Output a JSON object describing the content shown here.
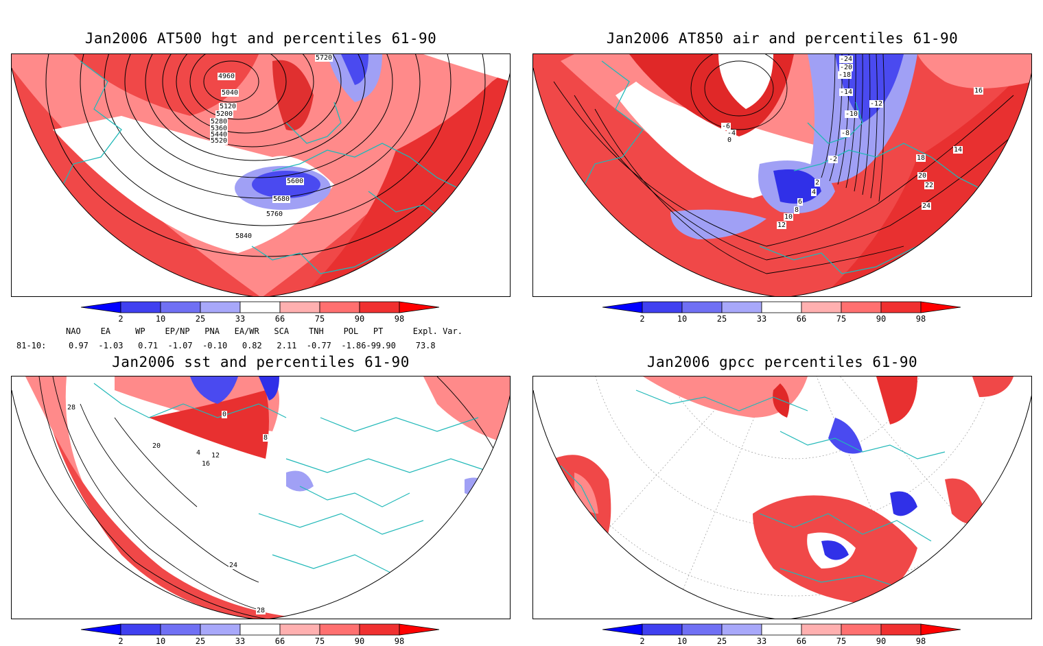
{
  "panels": [
    {
      "id": "hgt500",
      "title": "Jan2006 AT500 hgt and percentiles 61-90",
      "contour_labels": [
        "4960",
        "5040",
        "5120",
        "5200",
        "5280",
        "5360",
        "5440",
        "5520",
        "5600",
        "5680",
        "5760",
        "5840",
        "5720"
      ]
    },
    {
      "id": "air850",
      "title": "Jan2006 AT850 air and percentiles 61-90",
      "contour_labels": [
        "-24",
        "-20",
        "-18",
        "-14",
        "-12",
        "-10",
        "-8",
        "-6",
        "-4",
        "-2",
        "0",
        "2",
        "4",
        "6",
        "8",
        "10",
        "12",
        "14",
        "16",
        "18",
        "20",
        "22",
        "24"
      ]
    },
    {
      "id": "sst",
      "title": "Jan2006 sst and percentiles 61-90",
      "contour_labels": [
        "28",
        "20",
        "16",
        "12",
        "8",
        "4",
        "0",
        "24",
        "28"
      ]
    },
    {
      "id": "gpcc",
      "title": "Jan2006 gpcc percentiles 61-90",
      "contour_labels": []
    }
  ],
  "colorbar": {
    "ticks": [
      "2",
      "10",
      "25",
      "33",
      "66",
      "75",
      "90",
      "98"
    ],
    "colors": {
      "blue_dark": "#0000ff",
      "blue_mid": "#4040f0",
      "blue_light": "#9090f8",
      "blue_pale": "#c0c0ff",
      "red_pale": "#ffb0b0",
      "red_light": "#ff8080",
      "red_mid": "#f04040",
      "red_dark": "#ff0000"
    }
  },
  "indices": {
    "header": "NAO    EA     WP    EP/NP   PNA   EA/WR   SCA    TNH    POL   PT      Expl. Var.",
    "row_label": "81-10:",
    "values": "0.97  -1.03   0.71  -1.07  -0.10   0.82   2.11  -0.77  -1.86-99.90    73.8"
  },
  "colors": {
    "map_red": "#f04848",
    "map_red_light": "#ff8a8a",
    "map_blue": "#4a4af0",
    "map_blue_light": "#a0a0f5",
    "coast": "#20b8b8"
  }
}
